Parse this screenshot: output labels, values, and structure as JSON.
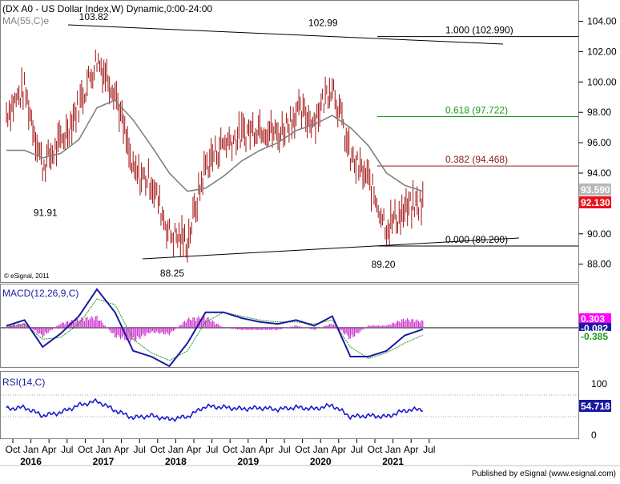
{
  "main_panel": {
    "title": "(DX A0 - US Dollar Index,W) Dynamic,0:00-24:00",
    "ma_label": "MA(55,C)e",
    "copyright": "© eSignal, 2011",
    "y_ticks": [
      "104.00",
      "102.00",
      "100.00",
      "98.00",
      "96.00",
      "94.00",
      "90.00",
      "88.00"
    ],
    "price_tags": [
      {
        "text": "93.590",
        "bg": "#b8b8b8",
        "fg": "#ffffff"
      },
      {
        "text": "92.130",
        "bg": "#e8141c",
        "fg": "#ffffff"
      }
    ],
    "annotations": {
      "high_2017": "103.82",
      "low_2016": "91.91",
      "low_2018": "88.25",
      "high_2020": "102.99",
      "low_2021": "89.20"
    },
    "fib_levels": [
      {
        "label": "1.000 (102.990)",
        "value": 102.99,
        "color": "#000000"
      },
      {
        "label": "0.618 (97.722)",
        "value": 97.722,
        "color": "#1a9a1a"
      },
      {
        "label": "0.382 (94.468)",
        "value": 94.468,
        "color": "#8b1a1a"
      },
      {
        "label": "0.000 (89.200)",
        "value": 89.2,
        "color": "#000000"
      }
    ]
  },
  "macd_panel": {
    "label": "MACD(12,26,9,C)",
    "tags": [
      {
        "text": "0.303",
        "bg": "#ff00ff",
        "fg": "#ffffff"
      },
      {
        "text": "-0.082",
        "bg": "#1a1aa0",
        "fg": "#ffffff"
      },
      {
        "text": "-0.385",
        "bg": "#ffffff",
        "fg": "#1a9a1a"
      }
    ]
  },
  "rsi_panel": {
    "label": "RSI(14,C)",
    "y_ticks": [
      "100",
      "0"
    ],
    "tag": {
      "text": "54.718",
      "bg": "#1a1aa0",
      "fg": "#ffffff"
    }
  },
  "x_axis": {
    "months": [
      "Oct",
      "Jan",
      "Apr",
      "Jul",
      "Oct",
      "Jan",
      "Apr",
      "Jul",
      "Oct",
      "Jan",
      "Apr",
      "Jul",
      "Oct",
      "Jan",
      "Apr",
      "Jul",
      "Oct",
      "Jan",
      "Apr",
      "Jul",
      "Oct",
      "Jan",
      "Apr",
      "Jul"
    ],
    "years": [
      "2016",
      "2017",
      "2018",
      "2019",
      "2020",
      "2021"
    ]
  },
  "footer": "Published by eSignal (www.esignal.com)",
  "colors": {
    "price_bars": "#a01010",
    "ma_line": "#808080",
    "macd_line": "#1a1aa0",
    "signal_line": "#1a9a1a",
    "histogram": "#cc33cc",
    "rsi_line": "#1a1ad0"
  },
  "chart_data": [
    {
      "type": "line",
      "title": "(DX A0 - US Dollar Index,W) Dynamic,0:00-24:00",
      "x": [
        "2015-10",
        "2016-01",
        "2016-04",
        "2016-07",
        "2016-10",
        "2017-01",
        "2017-04",
        "2017-07",
        "2017-10",
        "2018-01",
        "2018-04",
        "2018-07",
        "2018-10",
        "2019-01",
        "2019-04",
        "2019-07",
        "2019-10",
        "2020-01",
        "2020-04",
        "2020-07",
        "2020-10",
        "2021-01",
        "2021-04",
        "2021-07"
      ],
      "series": [
        {
          "name": "DX A0 - US Dollar Index",
          "values": [
            98.0,
            99.5,
            94.5,
            96.0,
            98.5,
            101.5,
            99.5,
            94.0,
            93.5,
            90.0,
            89.5,
            94.5,
            96.0,
            96.5,
            97.2,
            96.5,
            98.0,
            97.5,
            100.0,
            95.0,
            93.5,
            90.5,
            91.5,
            92.1
          ]
        },
        {
          "name": "MA(55,C)e",
          "values": [
            95.5,
            95.5,
            95.0,
            95.3,
            96.2,
            98.3,
            98.8,
            97.5,
            95.8,
            94.0,
            92.8,
            93.0,
            93.8,
            94.8,
            95.5,
            96.0,
            96.8,
            97.2,
            97.8,
            97.0,
            95.8,
            94.0,
            93.2,
            92.8
          ]
        }
      ],
      "points": [
        {
          "x": "2017-01",
          "y": 103.82
        },
        {
          "x": "2016-05",
          "y": 91.91
        },
        {
          "x": "2018-02",
          "y": 88.25
        },
        {
          "x": "2020-03",
          "y": 102.99
        },
        {
          "x": "2021-01",
          "y": 89.2
        }
      ],
      "ylim": [
        87.0,
        105.0
      ],
      "grid": false
    },
    {
      "type": "line",
      "title": "MACD(12,26,9,C)",
      "x": [
        "2015-10",
        "2016-01",
        "2016-04",
        "2016-07",
        "2016-10",
        "2017-01",
        "2017-04",
        "2017-07",
        "2017-10",
        "2018-01",
        "2018-04",
        "2018-07",
        "2018-10",
        "2019-01",
        "2019-04",
        "2019-07",
        "2019-10",
        "2020-01",
        "2020-04",
        "2020-07",
        "2020-10",
        "2021-01",
        "2021-04",
        "2021-07"
      ],
      "series": [
        {
          "name": "MACD",
          "values": [
            0.1,
            0.4,
            -1.0,
            -0.3,
            0.6,
            2.0,
            0.8,
            -1.2,
            -1.5,
            -2.0,
            -0.8,
            0.8,
            0.8,
            0.5,
            0.3,
            0.2,
            0.4,
            0.1,
            0.6,
            -1.5,
            -1.5,
            -1.2,
            -0.4,
            -0.08
          ]
        },
        {
          "name": "Signal",
          "values": [
            0.0,
            0.2,
            -0.6,
            -0.5,
            0.2,
            1.5,
            1.2,
            -0.6,
            -1.3,
            -1.7,
            -1.2,
            0.3,
            0.8,
            0.6,
            0.4,
            0.3,
            0.3,
            0.2,
            0.4,
            -1.0,
            -1.6,
            -1.3,
            -0.8,
            -0.385
          ]
        },
        {
          "name": "Histogram",
          "values": [
            0.1,
            0.2,
            -0.4,
            0.2,
            0.4,
            0.5,
            -0.4,
            -0.6,
            -0.2,
            -0.3,
            0.4,
            0.5,
            0.0,
            -0.1,
            -0.1,
            -0.1,
            0.1,
            -0.1,
            0.2,
            -0.5,
            0.1,
            0.1,
            0.4,
            0.303
          ]
        }
      ],
      "grid": false
    },
    {
      "type": "line",
      "title": "RSI(14,C)",
      "x": [
        "2015-10",
        "2016-01",
        "2016-04",
        "2016-07",
        "2016-10",
        "2017-01",
        "2017-04",
        "2017-07",
        "2017-10",
        "2018-01",
        "2018-04",
        "2018-07",
        "2018-10",
        "2019-01",
        "2019-04",
        "2019-07",
        "2019-10",
        "2020-01",
        "2020-04",
        "2020-07",
        "2020-10",
        "2021-01",
        "2021-04",
        "2021-07"
      ],
      "series": [
        {
          "name": "RSI(14,C)",
          "values": [
            55,
            58,
            42,
            48,
            62,
            70,
            52,
            38,
            42,
            35,
            40,
            60,
            58,
            55,
            57,
            54,
            58,
            55,
            62,
            40,
            42,
            40,
            52,
            54.718
          ]
        }
      ],
      "ylim": [
        0,
        100
      ],
      "grid": false
    }
  ]
}
